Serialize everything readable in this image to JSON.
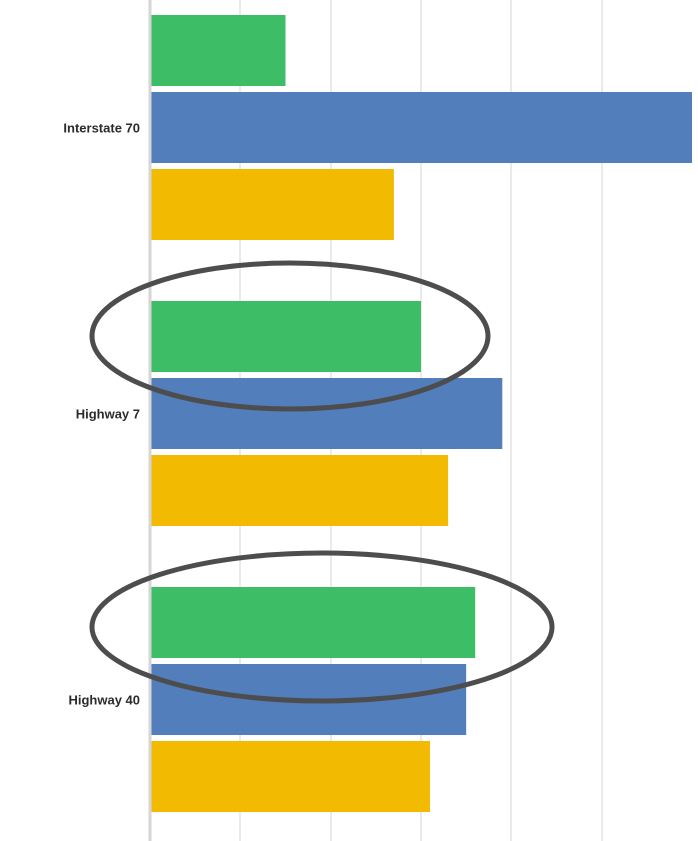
{
  "chart_data": {
    "type": "bar",
    "orientation": "horizontal",
    "categories": [
      "Interstate 70",
      "Highway 7",
      "Highway 40"
    ],
    "series": [
      {
        "values": [
          1.5,
          3.0,
          3.6
        ],
        "color": "#3dbd66"
      },
      {
        "values": [
          6.0,
          3.9,
          3.5
        ],
        "color": "#527ebb"
      },
      {
        "values": [
          2.7,
          3.3,
          3.1
        ],
        "color": "#f2bb02"
      }
    ],
    "xlim": [
      0,
      6
    ],
    "grid": true,
    "legend": "none",
    "annotations": [
      {
        "type": "ellipse",
        "category": "Highway 7",
        "color": "#4d4d4d"
      },
      {
        "type": "ellipse",
        "category": "Highway 40",
        "color": "#4d4d4d"
      }
    ]
  }
}
